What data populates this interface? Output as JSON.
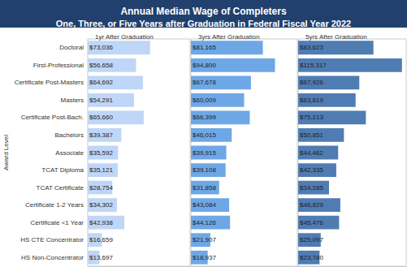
{
  "chart_data": {
    "type": "bar",
    "orientation": "horizontal",
    "title": "Annual Median Wage of Completers",
    "subtitle": "One, Three, or Five Years after Graduation in Federal Fiscal Year 2022",
    "ylabel": "Award Level",
    "categories": [
      "Doctoral",
      "First-Professional",
      "Certificate Post-Masters",
      "Masters",
      "Certificate Post-Bach.",
      "Bachelors",
      "Associate",
      "TCAT Diploma",
      "TCAT Certificate",
      "Certificate 1-2 Years",
      "Certificate <1 Year",
      "HS CTE Concentrator",
      "HS Non-Concentrator"
    ],
    "series": [
      {
        "name": "1yr After Graduation",
        "color": "#bfd6f6",
        "values": [
          73036,
          56658,
          64692,
          54291,
          65660,
          39387,
          35592,
          35121,
          28754,
          34302,
          42938,
          16659,
          13697
        ],
        "value_labels": [
          "$73,036",
          "$56,658",
          "$64,692",
          "$54,291",
          "$65,660",
          "$39,387",
          "$35,592",
          "$35,121",
          "$28,754",
          "$34,302",
          "$42,938",
          "$16,659",
          "$13,697"
        ]
      },
      {
        "name": "3yrs After Graduation",
        "color": "#6ea7e6",
        "values": [
          81165,
          94800,
          67678,
          60009,
          66399,
          46015,
          39915,
          39108,
          31858,
          43084,
          44126,
          21907,
          18937
        ],
        "value_labels": [
          "$81,165",
          "$94,800",
          "$67,678",
          "$60,009",
          "$66,399",
          "$46,015",
          "$39,915",
          "$39,108",
          "$31,858",
          "$43,084",
          "$44,126",
          "$21,907",
          "$18,937"
        ]
      },
      {
        "name": "5yrs After Graduation",
        "color": "#4f7cb3",
        "values": [
          83623,
          115317,
          67926,
          63819,
          75213,
          50851,
          44462,
          42335,
          34285,
          46829,
          45476,
          25097,
          23780
        ],
        "value_labels": [
          "$83,623",
          "$115,317",
          "$67,926",
          "$63,819",
          "$75,213",
          "$50,851",
          "$44,462",
          "$42,335",
          "$34,285",
          "$46,829",
          "$45,476",
          "$25,097",
          "$23,780"
        ]
      }
    ],
    "xlim": [
      0,
      120000
    ],
    "grid": false,
    "data_labels": true,
    "tick_labels": "y"
  }
}
